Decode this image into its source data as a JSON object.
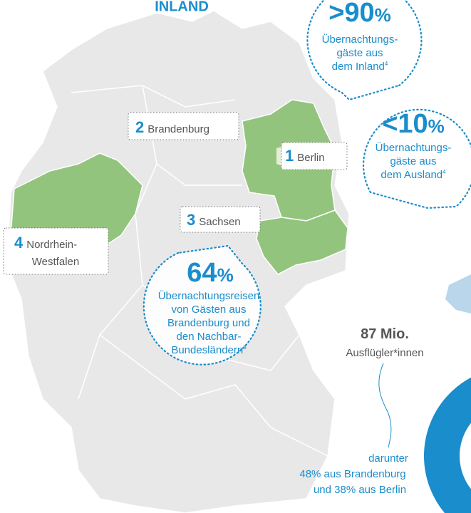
{
  "header": {
    "title": "INLAND"
  },
  "callouts": [
    {
      "value": ">90",
      "unit": "%",
      "lines": [
        "Übernachtungs-",
        "gäste aus",
        "dem Inland"
      ],
      "footnote": "4"
    },
    {
      "value": "<10",
      "unit": "%",
      "lines": [
        "Übernachtungs-",
        "gäste aus",
        "dem Ausland"
      ],
      "footnote": "4"
    },
    {
      "value": "64",
      "unit": "%",
      "lines": [
        "Übernachtungsreisen",
        "von Gästen aus",
        "Brandenburg und",
        "den Nachbar-",
        "Bundesländern"
      ],
      "footnote": "3"
    }
  ],
  "regions": [
    {
      "rank": "1",
      "name": "Berlin"
    },
    {
      "rank": "2",
      "name": "Brandenburg"
    },
    {
      "rank": "3",
      "name": "Sachsen"
    },
    {
      "rank": "4",
      "name": [
        "Nordrhein-",
        "Westfalen"
      ]
    }
  ],
  "daytrips": {
    "value": "87 Mio.",
    "label": "Ausflügler*innen",
    "note": [
      "darunter",
      "48% aus Brandenburg",
      "und 38% aus Berlin"
    ]
  }
}
